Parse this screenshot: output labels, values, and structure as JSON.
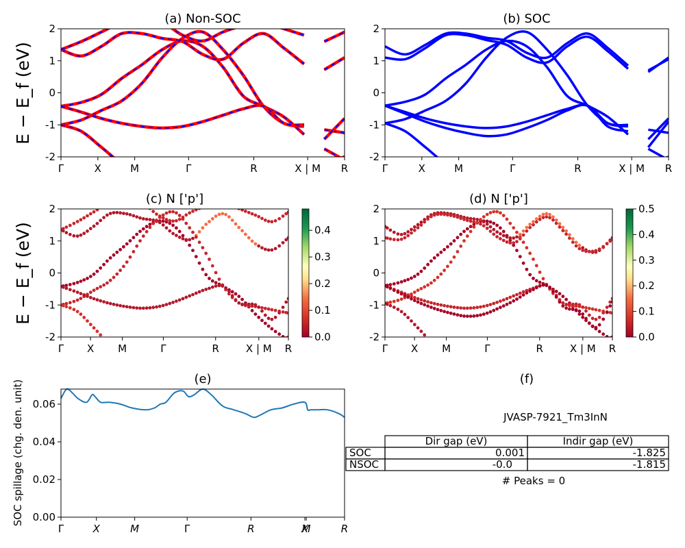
{
  "chart_data": [
    {
      "id": "a",
      "type": "line",
      "title": "(a) Non-SOC",
      "ylabel": "E − E_f (eV)",
      "ylim": [
        -2,
        2
      ],
      "yticks": [
        -2,
        -1,
        0,
        1,
        2
      ],
      "xticks": [
        "Γ",
        "X",
        "M",
        "Γ",
        "R",
        "X | M",
        "R"
      ],
      "colors": [
        "#ff0000",
        "#0000ff"
      ],
      "bands": [
        [
          -0.42,
          -0.3,
          -0.05,
          0.45,
          0.88,
          1.35,
          1.62,
          1.45,
          0.8,
          -0.1,
          -0.42,
          -0.75,
          -1.3,
          -1.75,
          -2.1
        ],
        [
          1.35,
          1.15,
          1.45,
          1.85,
          1.85,
          1.7,
          1.6,
          1.2,
          1.05,
          1.55,
          1.85,
          1.4,
          0.9,
          0.72,
          1.1
        ],
        [
          -1.0,
          -0.85,
          -0.55,
          -0.25,
          0.3,
          1.1,
          1.7,
          1.9,
          1.35,
          0.55,
          -0.42,
          -0.95,
          -1.05,
          -1.15,
          -1.25
        ],
        [
          -1.0,
          -1.2,
          -1.7,
          -2.2,
          -2.4,
          -2.6,
          -2.6,
          -2.4,
          -2.2,
          -2.05,
          -2.1,
          -2.3,
          -2.4,
          -2.2,
          -2.0
        ],
        [
          -0.42,
          -0.6,
          -0.8,
          -0.95,
          -1.05,
          -1.1,
          -1.05,
          -0.9,
          -0.7,
          -0.5,
          -0.42,
          -0.95,
          -1.0,
          -1.45,
          -0.8
        ],
        [
          1.35,
          1.6,
          1.9,
          2.2,
          2.3,
          2.2,
          1.8,
          1.62,
          1.9,
          2.1,
          2.2,
          2.0,
          1.8,
          1.6,
          1.9
        ]
      ]
    },
    {
      "id": "b",
      "type": "line",
      "title": "(b) SOC",
      "ylim": [
        -2,
        2
      ],
      "yticks": [
        -2,
        -1,
        0,
        1,
        2
      ],
      "xticks": [
        "Γ",
        "X",
        "M",
        "Γ",
        "R",
        "X | M",
        "R"
      ],
      "colors": [
        "#0000ff"
      ],
      "bands": [
        [
          -0.4,
          -0.28,
          -0.05,
          0.45,
          0.88,
          1.35,
          1.62,
          1.45,
          0.8,
          -0.1,
          -0.4,
          -0.75,
          -1.3,
          -1.75,
          -2.1
        ],
        [
          1.45,
          1.2,
          1.5,
          1.85,
          1.85,
          1.72,
          1.62,
          1.25,
          1.1,
          1.55,
          1.85,
          1.4,
          0.85,
          0.65,
          1.1
        ],
        [
          1.1,
          1.05,
          1.4,
          1.8,
          1.8,
          1.65,
          1.5,
          1.1,
          0.95,
          1.45,
          1.75,
          1.3,
          0.75,
          0.7,
          1.05
        ],
        [
          -0.95,
          -0.82,
          -0.55,
          -0.25,
          0.3,
          1.1,
          1.72,
          1.9,
          1.35,
          0.55,
          -0.4,
          -0.95,
          -1.05,
          -1.15,
          -1.25
        ],
        [
          -0.95,
          -1.2,
          -1.7,
          -2.2,
          -2.4,
          -2.6,
          -2.6,
          -2.4,
          -2.2,
          -2.05,
          -2.1,
          -2.3,
          -2.4,
          -2.2,
          -2.0
        ],
        [
          -0.4,
          -0.6,
          -0.8,
          -0.95,
          -1.05,
          -1.1,
          -1.05,
          -0.9,
          -0.7,
          -0.5,
          -0.4,
          -0.95,
          -1.0,
          -1.45,
          -0.8
        ],
        [
          -0.4,
          -0.65,
          -0.9,
          -1.1,
          -1.25,
          -1.35,
          -1.3,
          -1.1,
          -0.85,
          -0.55,
          -0.4,
          -1.05,
          -1.2,
          -1.7,
          -0.9
        ]
      ]
    },
    {
      "id": "c",
      "type": "scatter",
      "title": "(c)  N ['p']",
      "ylabel": "E − E_f (eV)",
      "ylim": [
        -2,
        2
      ],
      "yticks": [
        -2,
        -1,
        0,
        1,
        2
      ],
      "xticks": [
        "Γ",
        "X",
        "M",
        "Γ",
        "R",
        "X | M",
        "R"
      ],
      "colorbar": {
        "min": 0.0,
        "max": 0.48,
        "ticks": [
          "0.0",
          "0.1",
          "0.2",
          "0.3",
          "0.4"
        ]
      }
    },
    {
      "id": "d",
      "type": "scatter",
      "title": "(d) N ['p']",
      "ylim": [
        -2,
        2
      ],
      "yticks": [
        -2,
        -1,
        0,
        1,
        2
      ],
      "xticks": [
        "Γ",
        "X",
        "M",
        "Γ",
        "R",
        "X | M",
        "R"
      ],
      "colorbar": {
        "min": 0.0,
        "max": 0.5,
        "ticks": [
          "0.0",
          "0.1",
          "0.2",
          "0.3",
          "0.4",
          "0.5"
        ]
      }
    },
    {
      "id": "e",
      "type": "line",
      "title": "(e)",
      "ylabel": "SOC spillage (chg. den. unit)",
      "ylim": [
        0.0,
        0.068
      ],
      "yticks": [
        "0.00",
        "0.02",
        "0.04",
        "0.06"
      ],
      "xticks": [
        "Γ",
        "X",
        "M",
        "Γ",
        "R",
        "X",
        "M",
        "R"
      ],
      "color": "#1f77b4",
      "x": [
        0,
        0.02,
        0.04,
        0.06,
        0.09,
        0.11,
        0.12,
        0.14,
        0.17,
        0.21,
        0.25,
        0.3,
        0.33,
        0.35,
        0.37,
        0.4,
        0.43,
        0.45,
        0.47,
        0.5,
        0.53,
        0.57,
        0.61,
        0.65,
        0.68,
        0.7,
        0.74,
        0.78,
        0.82,
        0.86,
        0.87,
        0.88,
        0.9,
        0.94,
        0.98,
        1.0
      ],
      "y": [
        0.063,
        0.068,
        0.066,
        0.063,
        0.061,
        0.065,
        0.064,
        0.061,
        0.061,
        0.06,
        0.058,
        0.057,
        0.058,
        0.06,
        0.061,
        0.066,
        0.067,
        0.064,
        0.065,
        0.068,
        0.065,
        0.059,
        0.057,
        0.055,
        0.053,
        0.054,
        0.057,
        0.058,
        0.06,
        0.061,
        0.057,
        0.057,
        0.057,
        0.057,
        0.055,
        0.053
      ]
    }
  ],
  "panel_f": {
    "title": "(f)",
    "material": "JVASP-7921_Tm3InN",
    "headers": [
      "Dir gap (eV)",
      "Indir gap (eV)"
    ],
    "rows": [
      {
        "label": "SOC",
        "dir": "0.001",
        "indir": "-1.825"
      },
      {
        "label": "NSOC",
        "dir": "-0.0",
        "indir": "-1.815"
      }
    ],
    "peaks": "# Peaks = 0"
  }
}
